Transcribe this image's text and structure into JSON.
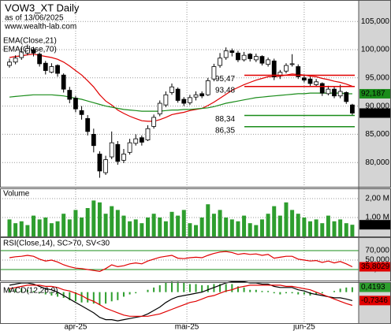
{
  "chart_data": [
    {
      "type": "candlestick",
      "title": "VOW3_XT Daily",
      "subtitle": "as of 13/06/2025",
      "source": "www.wealth-lab.com",
      "open": [
        97.2,
        97.8,
        98.6,
        99.4,
        100.0,
        99.2,
        97.6,
        96.0,
        97.2,
        95.5,
        92.8,
        91.4,
        89.2,
        87.8,
        85.0,
        81.5,
        78.2,
        81.0,
        83.2,
        80.4,
        81.8,
        83.4,
        84.4,
        84.0,
        86.4,
        88.6,
        90.2,
        92.4,
        93.0,
        91.2,
        90.6,
        91.6,
        92.2,
        92.0,
        94.8,
        97.2,
        98.6,
        99.8,
        99.4,
        98.2,
        99.2,
        98.2,
        98.8,
        97.4,
        98.0,
        95.4,
        96.2,
        97.4,
        97.0,
        95.0,
        94.8,
        93.8,
        94.0,
        92.2,
        93.0,
        91.8,
        92.4,
        90.2
      ],
      "high": [
        98.4,
        99.0,
        100.4,
        100.9,
        100.5,
        99.5,
        98.0,
        97.6,
        97.4,
        95.8,
        93.4,
        91.8,
        90.0,
        88.4,
        86.0,
        82.0,
        81.2,
        85.5,
        83.8,
        82.4,
        84.2,
        85.0,
        84.8,
        86.6,
        88.5,
        91.0,
        92.6,
        94.0,
        93.3,
        91.6,
        92.0,
        92.6,
        92.6,
        95.0,
        97.5,
        99.4,
        100.4,
        100.2,
        99.8,
        99.6,
        99.4,
        99.3,
        99.0,
        98.6,
        98.4,
        96.4,
        97.6,
        99.2,
        97.4,
        95.6,
        95.2,
        94.8,
        94.2,
        93.6,
        93.4,
        93.8,
        92.6,
        90.4
      ],
      "low": [
        96.8,
        97.4,
        98.2,
        99.0,
        98.8,
        97.0,
        95.6,
        95.8,
        95.2,
        92.4,
        90.5,
        88.9,
        87.6,
        84.8,
        81.8,
        77.3,
        77.8,
        80.6,
        79.6,
        79.9,
        81.4,
        83.0,
        83.0,
        83.8,
        86.0,
        88.2,
        89.8,
        92.0,
        90.6,
        90.0,
        90.2,
        91.0,
        91.4,
        91.8,
        94.4,
        96.8,
        98.2,
        98.8,
        97.8,
        97.9,
        97.9,
        97.8,
        97.2,
        97.0,
        94.6,
        94.8,
        95.8,
        97.0,
        94.8,
        94.2,
        93.6,
        93.4,
        91.8,
        91.9,
        91.4,
        91.4,
        90.4,
        88.4
      ],
      "close": [
        97.8,
        98.5,
        99.6,
        100.2,
        99.4,
        97.5,
        96.3,
        97.0,
        95.8,
        93.0,
        91.2,
        89.5,
        88.5,
        85.5,
        83.0,
        78.5,
        80.5,
        83.5,
        80.2,
        81.5,
        83.5,
        84.2,
        83.6,
        86.0,
        88.0,
        90.5,
        92.0,
        93.4,
        91.0,
        90.5,
        91.5,
        92.0,
        91.8,
        94.5,
        97.0,
        98.5,
        99.8,
        99.5,
        98.2,
        99.0,
        98.4,
        98.8,
        97.6,
        98.2,
        95.2,
        96.0,
        97.2,
        97.5,
        95.2,
        94.6,
        94.0,
        94.3,
        92.3,
        93.0,
        91.8,
        92.6,
        90.8,
        88.76
      ],
      "close_last_label": "88,760",
      "series": [
        {
          "name": "EMA(Close,21)",
          "color": "#e00000",
          "values": [
            98.6,
            98.8,
            98.9,
            99.1,
            99.2,
            99.0,
            98.8,
            98.6,
            98.3,
            97.8,
            97.1,
            96.3,
            95.5,
            94.5,
            93.4,
            92.0,
            90.9,
            90.2,
            89.3,
            88.7,
            88.2,
            87.8,
            87.4,
            87.3,
            87.3,
            87.6,
            88.0,
            88.5,
            88.7,
            88.9,
            89.2,
            89.4,
            89.6,
            90.1,
            90.7,
            91.4,
            92.1,
            92.8,
            93.3,
            93.8,
            94.2,
            94.6,
            94.9,
            95.2,
            95.2,
            95.3,
            95.5,
            95.7,
            95.6,
            95.5,
            95.3,
            95.2,
            94.9,
            94.7,
            94.4,
            94.2,
            93.9,
            93.5
          ]
        },
        {
          "name": "EMA(Close,70)",
          "color": "#1a8c1a",
          "last_label": "92,187",
          "values": [
            91.6,
            91.7,
            91.8,
            91.9,
            92.0,
            92.0,
            92.0,
            92.0,
            91.9,
            91.8,
            91.6,
            91.4,
            91.2,
            90.9,
            90.6,
            90.3,
            90.0,
            89.8,
            89.6,
            89.4,
            89.3,
            89.2,
            89.1,
            89.1,
            89.1,
            89.1,
            89.2,
            89.3,
            89.3,
            89.4,
            89.4,
            89.5,
            89.6,
            89.7,
            89.9,
            90.2,
            90.5,
            90.7,
            90.9,
            91.1,
            91.3,
            91.5,
            91.6,
            91.7,
            91.8,
            91.9,
            92.0,
            92.1,
            92.2,
            92.2,
            92.3,
            92.3,
            92.3,
            92.3,
            92.3,
            92.3,
            92.2,
            92.187
          ]
        }
      ],
      "levels": [
        {
          "value": 95.47,
          "label": "95,47",
          "color": "#e00000"
        },
        {
          "value": 93.48,
          "label": "93,48",
          "color": "#e00000"
        },
        {
          "value": 88.34,
          "label": "88,34",
          "color": "#1a8c1a"
        },
        {
          "value": 86.35,
          "label": "86,35",
          "color": "#1a8c1a"
        }
      ],
      "ylim": [
        75.7,
        108.8
      ],
      "yticks": [
        {
          "value": 105,
          "label": "105,000"
        },
        {
          "value": 100,
          "label": "100,000"
        },
        {
          "value": 95,
          "label": "95,000"
        },
        {
          "value": 90,
          "label": "90,000"
        },
        {
          "value": 85,
          "label": "85,000"
        },
        {
          "value": 80,
          "label": "80,000"
        }
      ]
    },
    {
      "type": "bar",
      "title": "Volume",
      "color": "#2e9e2e",
      "last_label": "617,583",
      "values": [
        0.9,
        0.7,
        0.8,
        0.6,
        1.1,
        0.9,
        1.0,
        0.7,
        0.8,
        1.2,
        0.9,
        1.4,
        1.0,
        1.5,
        1.9,
        1.8,
        1.2,
        1.6,
        1.4,
        1.1,
        0.8,
        0.9,
        0.7,
        1.0,
        1.2,
        1.0,
        0.8,
        1.3,
        1.1,
        1.4,
        0.7,
        0.6,
        1.0,
        1.7,
        1.2,
        1.4,
        1.0,
        0.9,
        0.8,
        1.1,
        0.7,
        0.6,
        0.9,
        1.2,
        1.6,
        1.1,
        1.8,
        1.4,
        1.2,
        1.0,
        0.8,
        0.9,
        0.7,
        1.1,
        0.8,
        0.9,
        0.7,
        0.617583
      ],
      "ylim": [
        0,
        2.5
      ],
      "yticks": [
        {
          "value": 2,
          "label": "2,00 M"
        },
        {
          "value": 1,
          "label": "1,00 M"
        }
      ]
    },
    {
      "type": "line",
      "title": "RSI(Close,14), SC>70, SV<30",
      "color": "#e00000",
      "band_color": "#1a8c1a",
      "last_label": "35,8029",
      "values": [
        55,
        57,
        58,
        60,
        58,
        52,
        48,
        50,
        46,
        40,
        36,
        33,
        32,
        30,
        28,
        26,
        32,
        40,
        36,
        38,
        42,
        44,
        42,
        48,
        52,
        56,
        58,
        60,
        54,
        53,
        55,
        56,
        55,
        60,
        64,
        67,
        68,
        66,
        62,
        64,
        62,
        63,
        60,
        62,
        54,
        56,
        58,
        58,
        52,
        50,
        48,
        49,
        45,
        48,
        44,
        47,
        42,
        35.8029
      ],
      "ylim": [
        6.7,
        96.7
      ],
      "yticks": [
        {
          "value": 70,
          "label": "70,000"
        },
        {
          "value": 50,
          "label": "50,000"
        },
        {
          "value": 30,
          "label": "30,000"
        }
      ]
    },
    {
      "type": "macd",
      "title": "MACD(12,26,9)",
      "series": [
        {
          "color": "#000000",
          "last_label": "-0,7346",
          "values": [
            0.6,
            0.7,
            0.8,
            0.8,
            0.7,
            0.5,
            0.3,
            0.2,
            0.0,
            -0.3,
            -0.6,
            -0.9,
            -1.2,
            -1.5,
            -1.8,
            -2.2,
            -2.4,
            -2.4,
            -2.5,
            -2.4,
            -2.3,
            -2.2,
            -2.1,
            -1.9,
            -1.6,
            -1.3,
            -0.9,
            -0.6,
            -0.4,
            -0.3,
            -0.2,
            -0.1,
            0.0,
            0.2,
            0.4,
            0.6,
            0.8,
            0.9,
            0.9,
            0.9,
            0.8,
            0.8,
            0.7,
            0.7,
            0.5,
            0.4,
            0.4,
            0.4,
            0.2,
            0.1,
            -0.1,
            -0.2,
            -0.3,
            -0.4,
            -0.5,
            -0.5,
            -0.6,
            -0.7346
          ]
        },
        {
          "color": "#e00000",
          "values": [
            0.3,
            0.4,
            0.5,
            0.6,
            0.6,
            0.6,
            0.5,
            0.5,
            0.4,
            0.2,
            0.1,
            -0.1,
            -0.3,
            -0.6,
            -0.8,
            -1.1,
            -1.4,
            -1.6,
            -1.8,
            -2.0,
            -2.1,
            -2.1,
            -2.1,
            -2.1,
            -2.0,
            -1.9,
            -1.7,
            -1.5,
            -1.3,
            -1.1,
            -0.9,
            -0.8,
            -0.6,
            -0.4,
            -0.3,
            -0.1,
            0.1,
            0.2,
            0.4,
            0.5,
            0.6,
            0.6,
            0.6,
            0.6,
            0.6,
            0.6,
            0.5,
            0.5,
            0.4,
            0.3,
            0.2,
            0.0,
            -0.2,
            -0.4,
            -0.6,
            -0.8,
            -1.0,
            -1.1539
          ]
        }
      ],
      "histogram": {
        "color": "#2e9e2e",
        "last_label": "0,4193",
        "values": [
          0.3,
          0.3,
          0.3,
          0.2,
          0.1,
          -0.1,
          -0.2,
          -0.3,
          -0.4,
          -0.5,
          -0.7,
          -0.8,
          -0.9,
          -0.9,
          -1.0,
          -1.1,
          -1.0,
          -0.8,
          -0.7,
          -0.4,
          -0.2,
          -0.1,
          0,
          0.2,
          0.4,
          0.6,
          0.8,
          0.9,
          0.9,
          0.8,
          0.7,
          0.7,
          0.6,
          0.6,
          0.7,
          0.7,
          0.7,
          0.7,
          0.5,
          0.4,
          0.2,
          0.2,
          0.1,
          0.1,
          -0.1,
          -0.2,
          -0.1,
          -0.1,
          -0.2,
          -0.2,
          -0.3,
          -0.2,
          -0.1,
          0,
          0.1,
          0.3,
          0.4,
          0.4193
        ]
      },
      "ylim": [
        -2.7,
        0.8
      ],
      "xticks": [
        {
          "value": 11,
          "label": "apr-25"
        },
        {
          "value": 29.5,
          "label": "mai-25"
        },
        {
          "value": 49,
          "label": "jun-25"
        }
      ]
    }
  ]
}
